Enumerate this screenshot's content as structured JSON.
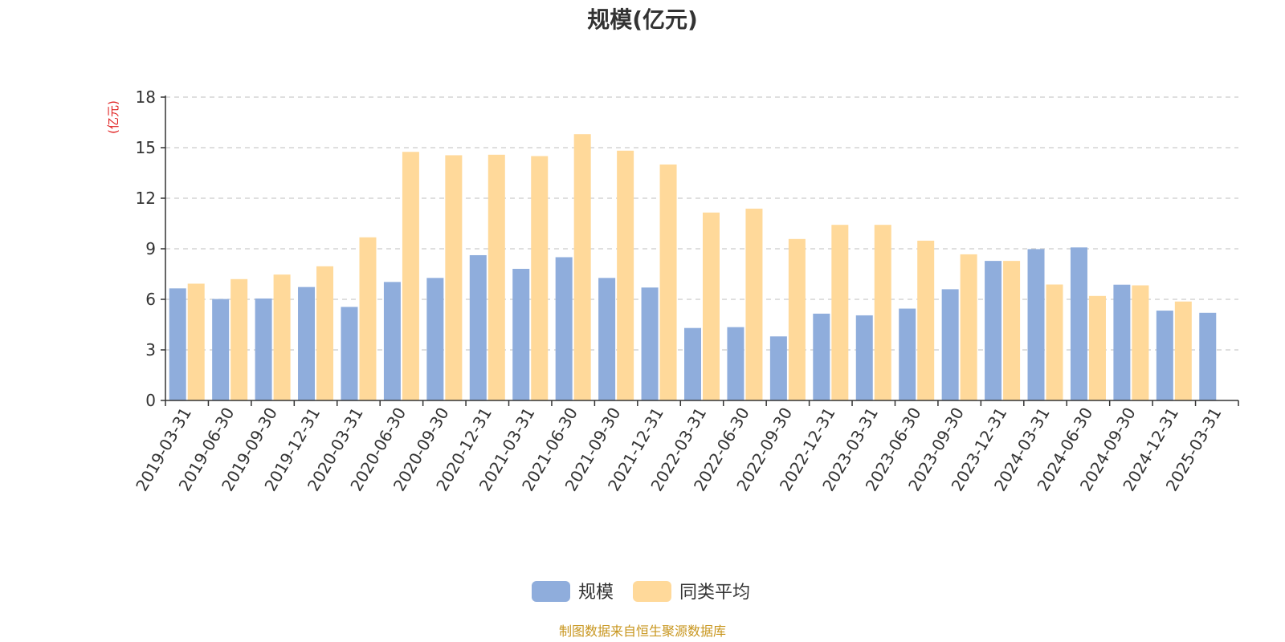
{
  "colors": {
    "series_a": "#8faddc",
    "series_b": "#ffd99a",
    "unit_label": "#e02020",
    "source_text": "#c8961e",
    "grid": "#cccccc",
    "axis": "#333333"
  },
  "footer": {
    "source": "制图数据来自恒生聚源数据库"
  },
  "chart_data": {
    "type": "bar",
    "title": "规模(亿元)",
    "ylabel": "(亿元)",
    "xlabel": "",
    "ylim": [
      0,
      18
    ],
    "yticks": [
      0,
      3,
      6,
      9,
      12,
      15,
      18
    ],
    "grid": true,
    "legend_position": "bottom-center",
    "categories": [
      "2019-03-31",
      "2019-06-30",
      "2019-09-30",
      "2019-12-31",
      "2020-03-31",
      "2020-06-30",
      "2020-09-30",
      "2020-12-31",
      "2021-03-31",
      "2021-06-30",
      "2021-09-30",
      "2021-12-31",
      "2022-03-31",
      "2022-06-30",
      "2022-09-30",
      "2022-12-31",
      "2023-03-31",
      "2023-06-30",
      "2023-09-30",
      "2023-12-31",
      "2024-03-31",
      "2024-06-30",
      "2024-09-30",
      "2024-12-31",
      "2025-03-31"
    ],
    "series": [
      {
        "name": "规模",
        "values": [
          6.65,
          6.02,
          6.05,
          6.73,
          5.55,
          7.03,
          7.27,
          8.62,
          7.81,
          8.5,
          7.27,
          6.7,
          4.3,
          4.35,
          3.8,
          5.15,
          5.05,
          5.45,
          6.6,
          8.28,
          8.98,
          9.08,
          6.87,
          5.33,
          5.2
        ]
      },
      {
        "name": "同类平均",
        "values": [
          6.93,
          7.2,
          7.47,
          7.96,
          9.68,
          14.75,
          14.55,
          14.58,
          14.5,
          15.8,
          14.82,
          14.0,
          11.15,
          11.38,
          9.58,
          10.42,
          10.42,
          9.48,
          8.67,
          8.28,
          6.88,
          6.2,
          6.83,
          5.87,
          null
        ]
      }
    ]
  }
}
